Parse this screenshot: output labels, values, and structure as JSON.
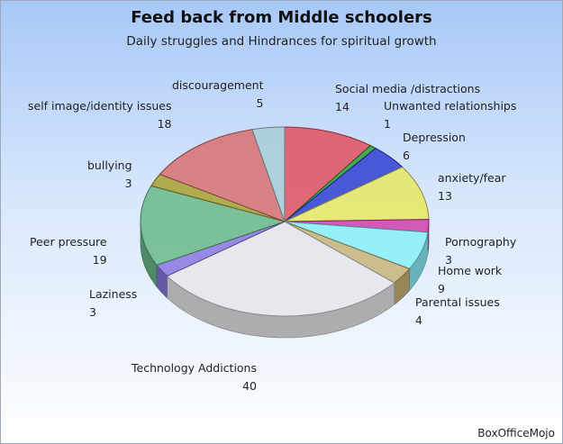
{
  "chart_data": {
    "type": "pie",
    "style": "3d",
    "title": "Feed back from Middle schoolers",
    "subtitle": "Daily struggles and Hindrances for spiritual growth",
    "credit": "BoxOfficeMojo",
    "slices": [
      {
        "label": "Social media /distractions",
        "value": 14,
        "color": "#e0505e"
      },
      {
        "label": "Unwanted relationships",
        "value": 1,
        "color": "#30a030"
      },
      {
        "label": "Depression",
        "value": 6,
        "color": "#3040d0"
      },
      {
        "label": "anxiety/fear",
        "value": 13,
        "color": "#e8e860"
      },
      {
        "label": "Pornography",
        "value": 3,
        "color": "#d040a8"
      },
      {
        "label": "Home work",
        "value": 9,
        "color": "#88f0f8"
      },
      {
        "label": "Parental issues",
        "value": 4,
        "color": "#c8b478"
      },
      {
        "label": "Technology Addictions",
        "value": 40,
        "color": "#e6e6ea"
      },
      {
        "label": "Laziness",
        "value": 3,
        "color": "#8878e0"
      },
      {
        "label": "Peer pressure",
        "value": 19,
        "color": "#68b88a"
      },
      {
        "label": "bullying",
        "value": 3,
        "color": "#a8a030"
      },
      {
        "label": "self image/identity issues",
        "value": 18,
        "color": "#d87070"
      },
      {
        "label": "discouragement",
        "value": 5,
        "color": "#a8ccd4"
      }
    ]
  }
}
